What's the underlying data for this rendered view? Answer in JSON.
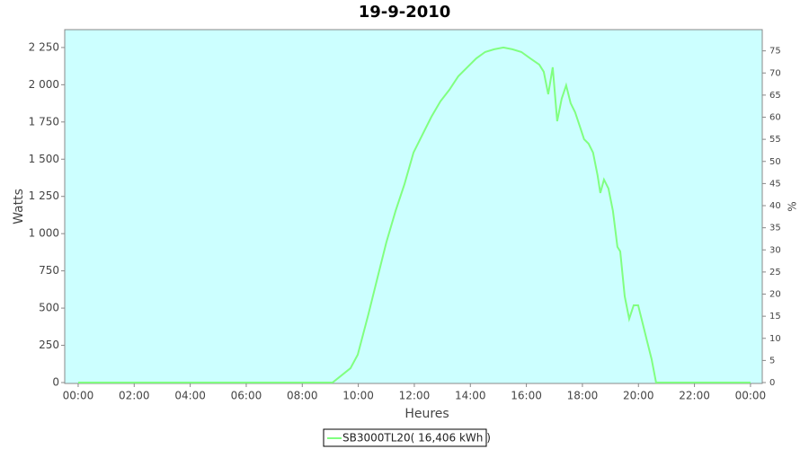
{
  "chart_data": {
    "type": "line",
    "title": "19-9-2010",
    "xlabel": "Heures",
    "ylabel": "Watts",
    "y2label": "%",
    "xlim": [
      -0.48,
      24.42
    ],
    "xticks": [
      {
        "value": 0,
        "label": "00:00"
      },
      {
        "value": 2,
        "label": "02:00"
      },
      {
        "value": 4,
        "label": "04:00"
      },
      {
        "value": 6,
        "label": "06:00"
      },
      {
        "value": 8,
        "label": "08:00"
      },
      {
        "value": 10,
        "label": "10:00"
      },
      {
        "value": 12,
        "label": "12:00"
      },
      {
        "value": 14,
        "label": "14:00"
      },
      {
        "value": 16,
        "label": "16:00"
      },
      {
        "value": 18,
        "label": "18:00"
      },
      {
        "value": 20,
        "label": "20:00"
      },
      {
        "value": 22,
        "label": "22:00"
      },
      {
        "value": 24,
        "label": "00:00"
      }
    ],
    "ylim": [
      -6,
      2370
    ],
    "yticks": [
      0,
      250,
      500,
      750,
      {
        "value": 1000,
        "label": "1 000"
      },
      {
        "value": 1250,
        "label": "1 250"
      },
      {
        "value": 1500,
        "label": "1 500"
      },
      {
        "value": 1750,
        "label": "1 750"
      },
      {
        "value": 2000,
        "label": "2 000"
      },
      {
        "value": 2250,
        "label": "2 250"
      }
    ],
    "y2lim": [
      -0.2,
      79.8
    ],
    "y2ticks": [
      0,
      5,
      10,
      15,
      20,
      25,
      30,
      35,
      40,
      45,
      50,
      55,
      60,
      65,
      70,
      75
    ],
    "background": "#ccffff",
    "series": [
      {
        "name": "SB3000TL20( 16,406 kWh )",
        "color": "#80ff80",
        "x": [
          0,
          9.08,
          9.4,
          9.72,
          9.98,
          10.36,
          10.68,
          11.0,
          11.33,
          11.65,
          11.97,
          12.29,
          12.61,
          12.93,
          13.25,
          13.57,
          13.89,
          14.21,
          14.53,
          14.85,
          15.18,
          15.5,
          15.82,
          16.14,
          16.46,
          16.62,
          16.78,
          16.94,
          17.1,
          17.26,
          17.42,
          17.58,
          17.74,
          17.9,
          18.06,
          18.22,
          18.38,
          18.54,
          18.64,
          18.77,
          18.93,
          19.09,
          19.25,
          19.35,
          19.51,
          19.67,
          19.83,
          19.99,
          20.15,
          20.31,
          20.47,
          20.63,
          24.0
        ],
        "values": [
          0,
          0,
          48,
          96,
          187,
          458,
          700,
          941,
          1152,
          1333,
          1544,
          1665,
          1785,
          1888,
          1966,
          2057,
          2117,
          2177,
          2220,
          2238,
          2250,
          2238,
          2220,
          2177,
          2135,
          2087,
          1936,
          2117,
          1755,
          1906,
          1996,
          1876,
          1815,
          1725,
          1634,
          1604,
          1544,
          1393,
          1273,
          1363,
          1303,
          1152,
          911,
          881,
          579,
          428,
          519,
          519,
          398,
          277,
          157,
          0,
          0
        ]
      }
    ]
  }
}
